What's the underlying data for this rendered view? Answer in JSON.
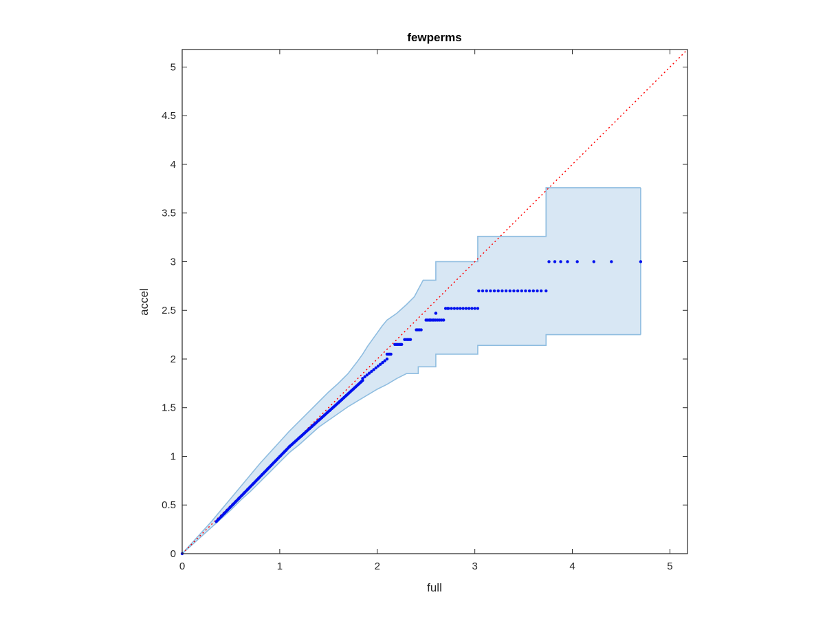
{
  "chart_data": {
    "type": "scatter",
    "title": "fewperms",
    "xlabel": "full",
    "ylabel": "accel",
    "xlim": [
      0,
      5.18
    ],
    "ylim": [
      0,
      5.18
    ],
    "xticks": [
      0,
      1,
      2,
      3,
      4,
      5
    ],
    "yticks": [
      0,
      0.5,
      1,
      1.5,
      2,
      2.5,
      3,
      3.5,
      4,
      4.5,
      5
    ],
    "xtick_labels": [
      "0",
      "1",
      "2",
      "3",
      "4",
      "5"
    ],
    "ytick_labels": [
      "0",
      "0.5",
      "1",
      "1.5",
      "2",
      "2.5",
      "3",
      "3.5",
      "4",
      "4.5",
      "5"
    ],
    "grid": false,
    "colors": {
      "points": "#0010ee",
      "reference": "#ff0000",
      "band_fill": "#d8e7f4",
      "band_edge": "#8fbde0"
    },
    "reference_line": {
      "x": [
        0,
        5.18
      ],
      "y": [
        0,
        5.18
      ]
    },
    "band": {
      "upper": [
        [
          0,
          0
        ],
        [
          0.3,
          0.33
        ],
        [
          0.4,
          0.45
        ],
        [
          0.5,
          0.57
        ],
        [
          0.6,
          0.69
        ],
        [
          0.7,
          0.81
        ],
        [
          0.8,
          0.93
        ],
        [
          0.9,
          1.04
        ],
        [
          1.0,
          1.15
        ],
        [
          1.1,
          1.26
        ],
        [
          1.2,
          1.36
        ],
        [
          1.3,
          1.46
        ],
        [
          1.4,
          1.56
        ],
        [
          1.5,
          1.66
        ],
        [
          1.6,
          1.75
        ],
        [
          1.7,
          1.85
        ],
        [
          1.8,
          1.98
        ],
        [
          1.85,
          2.05
        ],
        [
          1.9,
          2.13
        ],
        [
          1.95,
          2.2
        ],
        [
          2.0,
          2.27
        ],
        [
          2.05,
          2.34
        ],
        [
          2.1,
          2.4
        ],
        [
          2.2,
          2.47
        ],
        [
          2.3,
          2.56
        ],
        [
          2.38,
          2.64
        ],
        [
          2.47,
          2.81
        ],
        [
          2.6,
          2.81
        ],
        [
          2.6,
          3.0
        ],
        [
          3.03,
          3.0
        ],
        [
          3.03,
          3.26
        ],
        [
          3.73,
          3.26
        ],
        [
          3.73,
          3.76
        ],
        [
          4.7,
          3.76
        ]
      ],
      "lower": [
        [
          0,
          0
        ],
        [
          0.3,
          0.27
        ],
        [
          0.4,
          0.36
        ],
        [
          0.5,
          0.45
        ],
        [
          0.6,
          0.55
        ],
        [
          0.7,
          0.64
        ],
        [
          0.8,
          0.74
        ],
        [
          0.9,
          0.84
        ],
        [
          1.0,
          0.94
        ],
        [
          1.1,
          1.04
        ],
        [
          1.2,
          1.12
        ],
        [
          1.3,
          1.21
        ],
        [
          1.4,
          1.3
        ],
        [
          1.5,
          1.37
        ],
        [
          1.6,
          1.44
        ],
        [
          1.7,
          1.51
        ],
        [
          1.8,
          1.57
        ],
        [
          1.9,
          1.63
        ],
        [
          2.0,
          1.69
        ],
        [
          2.1,
          1.74
        ],
        [
          2.2,
          1.8
        ],
        [
          2.3,
          1.85
        ],
        [
          2.42,
          1.85
        ],
        [
          2.42,
          1.92
        ],
        [
          2.6,
          1.92
        ],
        [
          2.6,
          2.05
        ],
        [
          3.03,
          2.05
        ],
        [
          3.03,
          2.14
        ],
        [
          3.73,
          2.14
        ],
        [
          3.73,
          2.25
        ],
        [
          4.7,
          2.25
        ]
      ]
    },
    "series": [
      {
        "segments": [
          {
            "x_start": 0.0,
            "x_end": 0.0,
            "y": 0.0,
            "count": 1
          },
          {
            "x_start": 0.35,
            "x_end": 1.1,
            "y_start": 0.33,
            "y_end": 1.1,
            "count": 60
          },
          {
            "x_start": 1.1,
            "x_end": 1.6,
            "y_start": 1.1,
            "y_end": 1.55,
            "count": 40
          },
          {
            "x_start": 1.6,
            "x_end": 1.85,
            "y_start": 1.55,
            "y_end": 1.78,
            "count": 22
          },
          {
            "x_start": 1.85,
            "x_end": 2.1,
            "y_start": 1.8,
            "y_end": 2.0,
            "count": 12
          }
        ],
        "steps": [
          {
            "x": [
              2.1,
              2.14
            ],
            "y": 2.05
          },
          {
            "x": [
              2.18,
              2.25
            ],
            "y": 2.15
          },
          {
            "x": [
              2.28,
              2.34
            ],
            "y": 2.2
          },
          {
            "x": [
              2.4,
              2.45
            ],
            "y": 2.3
          },
          {
            "x": [
              2.5,
              2.58
            ],
            "y": 2.4
          },
          {
            "x": [
              2.6,
              2.6
            ],
            "y": 2.47
          },
          {
            "x": [
              2.7,
              2.72
            ],
            "y": 2.52
          }
        ],
        "plateaus": [
          {
            "y": 2.4,
            "x": [
              2.5,
              2.54,
              2.58,
              2.6,
              2.62,
              2.64,
              2.66,
              2.68
            ]
          },
          {
            "y": 2.52,
            "x": [
              2.73,
              2.76,
              2.79,
              2.82,
              2.85,
              2.88,
              2.91,
              2.94,
              2.97,
              3.0,
              3.03
            ]
          },
          {
            "y": 2.7,
            "x": [
              3.04,
              3.08,
              3.12,
              3.16,
              3.2,
              3.24,
              3.28,
              3.32,
              3.36,
              3.4,
              3.44,
              3.48,
              3.52,
              3.56,
              3.6,
              3.64,
              3.68,
              3.73
            ]
          },
          {
            "y": 3.0,
            "x": [
              3.76,
              3.82,
              3.88,
              3.95,
              4.05,
              4.22,
              4.4,
              4.7
            ]
          }
        ]
      }
    ]
  }
}
